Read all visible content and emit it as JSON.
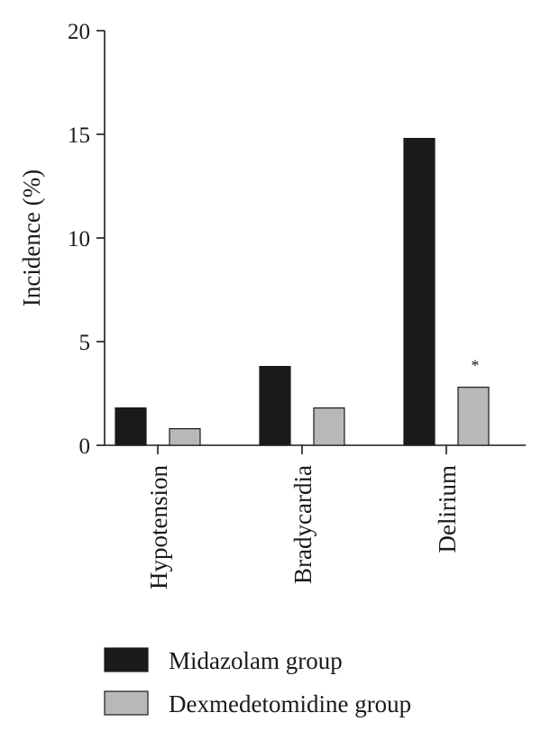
{
  "chart_data": {
    "type": "bar",
    "ylabel": "Incidence (%)",
    "xlabel": "",
    "ylim": [
      0,
      20
    ],
    "yticks": [
      0,
      5,
      10,
      15,
      20
    ],
    "categories": [
      "Hypotension",
      "Bradycardia",
      "Delirium"
    ],
    "series": [
      {
        "name": "Midazolam group",
        "values": [
          1.8,
          3.8,
          14.8
        ],
        "color": "#1a1a1a"
      },
      {
        "name": "Dexmedetomidine group",
        "values": [
          0.8,
          1.8,
          2.8
        ],
        "color": "#b8b8b8"
      }
    ],
    "annotations": [
      {
        "category": "Delirium",
        "series": "Dexmedetomidine group",
        "text": "*"
      }
    ],
    "grid": false,
    "legend_position": "bottom"
  }
}
